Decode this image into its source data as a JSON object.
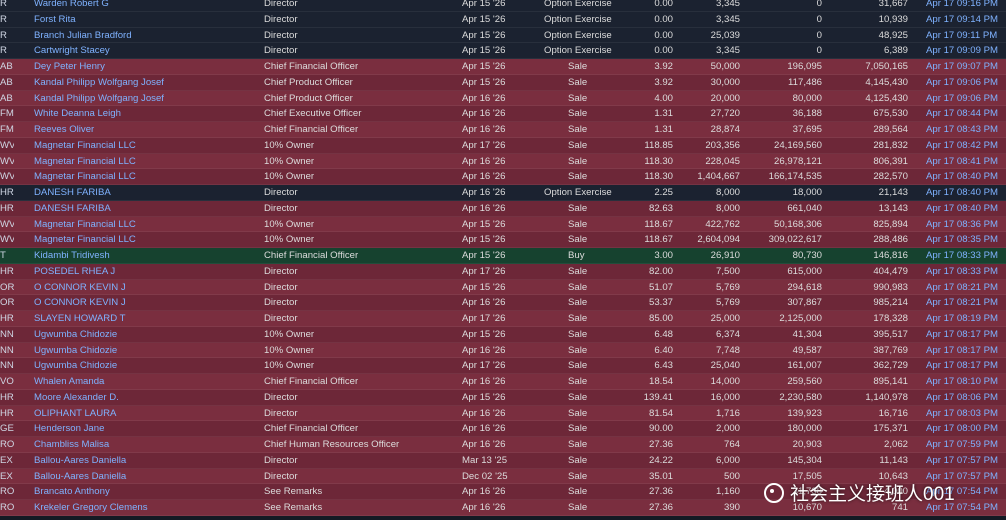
{
  "rows": [
    {
      "ticker": "R",
      "insider": "Warden Robert G",
      "title": "Director",
      "trade_date": "Apr 15 '26",
      "type": "Option Exercise",
      "price": "0.00",
      "qty": "3,345",
      "value": "0",
      "owned": "31,667",
      "filed": "Apr 17 09:16 PM"
    },
    {
      "ticker": "R",
      "insider": "Forst Rita",
      "title": "Director",
      "trade_date": "Apr 15 '26",
      "type": "Option Exercise",
      "price": "0.00",
      "qty": "3,345",
      "value": "0",
      "owned": "10,939",
      "filed": "Apr 17 09:14 PM"
    },
    {
      "ticker": "R",
      "insider": "Branch Julian Bradford",
      "title": "Director",
      "trade_date": "Apr 15 '26",
      "type": "Option Exercise",
      "price": "0.00",
      "qty": "25,039",
      "value": "0",
      "owned": "48,925",
      "filed": "Apr 17 09:11 PM"
    },
    {
      "ticker": "R",
      "insider": "Cartwright Stacey",
      "title": "Director",
      "trade_date": "Apr 15 '26",
      "type": "Option Exercise",
      "price": "0.00",
      "qty": "3,345",
      "value": "0",
      "owned": "6,389",
      "filed": "Apr 17 09:09 PM"
    },
    {
      "ticker": "AB",
      "insider": "Dey Peter Henry",
      "title": "Chief Financial Officer",
      "trade_date": "Apr 15 '26",
      "type": "Sale",
      "price": "3.92",
      "qty": "50,000",
      "value": "196,095",
      "owned": "7,050,165",
      "filed": "Apr 17 09:07 PM"
    },
    {
      "ticker": "AB",
      "insider": "Kandal Philipp Wolfgang Josef",
      "title": "Chief Product Officer",
      "trade_date": "Apr 15 '26",
      "type": "Sale",
      "price": "3.92",
      "qty": "30,000",
      "value": "117,486",
      "owned": "4,145,430",
      "filed": "Apr 17 09:06 PM"
    },
    {
      "ticker": "AB",
      "insider": "Kandal Philipp Wolfgang Josef",
      "title": "Chief Product Officer",
      "trade_date": "Apr 16 '26",
      "type": "Sale",
      "price": "4.00",
      "qty": "20,000",
      "value": "80,000",
      "owned": "4,125,430",
      "filed": "Apr 17 09:06 PM"
    },
    {
      "ticker": "FM",
      "insider": "White Deanna Leigh",
      "title": "Chief Executive Officer",
      "trade_date": "Apr 16 '26",
      "type": "Sale",
      "price": "1.31",
      "qty": "27,720",
      "value": "36,188",
      "owned": "675,530",
      "filed": "Apr 17 08:44 PM"
    },
    {
      "ticker": "FM",
      "insider": "Reeves Oliver",
      "title": "Chief Financial Officer",
      "trade_date": "Apr 16 '26",
      "type": "Sale",
      "price": "1.31",
      "qty": "28,874",
      "value": "37,695",
      "owned": "289,564",
      "filed": "Apr 17 08:43 PM"
    },
    {
      "ticker": "WV",
      "insider": "Magnetar Financial LLC",
      "title": "10% Owner",
      "trade_date": "Apr 17 '26",
      "type": "Sale",
      "price": "118.85",
      "qty": "203,356",
      "value": "24,169,560",
      "owned": "281,832",
      "filed": "Apr 17 08:42 PM"
    },
    {
      "ticker": "WV",
      "insider": "Magnetar Financial LLC",
      "title": "10% Owner",
      "trade_date": "Apr 16 '26",
      "type": "Sale",
      "price": "118.30",
      "qty": "228,045",
      "value": "26,978,121",
      "owned": "806,391",
      "filed": "Apr 17 08:41 PM"
    },
    {
      "ticker": "WV",
      "insider": "Magnetar Financial LLC",
      "title": "10% Owner",
      "trade_date": "Apr 16 '26",
      "type": "Sale",
      "price": "118.30",
      "qty": "1,404,667",
      "value": "166,174,535",
      "owned": "282,570",
      "filed": "Apr 17 08:40 PM"
    },
    {
      "ticker": "HR",
      "insider": "DANESH FARIBA",
      "title": "Director",
      "trade_date": "Apr 16 '26",
      "type": "Option Exercise",
      "price": "2.25",
      "qty": "8,000",
      "value": "18,000",
      "owned": "21,143",
      "filed": "Apr 17 08:40 PM"
    },
    {
      "ticker": "HR",
      "insider": "DANESH FARIBA",
      "title": "Director",
      "trade_date": "Apr 16 '26",
      "type": "Sale",
      "price": "82.63",
      "qty": "8,000",
      "value": "661,040",
      "owned": "13,143",
      "filed": "Apr 17 08:40 PM"
    },
    {
      "ticker": "WV",
      "insider": "Magnetar Financial LLC",
      "title": "10% Owner",
      "trade_date": "Apr 15 '26",
      "type": "Sale",
      "price": "118.67",
      "qty": "422,762",
      "value": "50,168,306",
      "owned": "825,894",
      "filed": "Apr 17 08:36 PM"
    },
    {
      "ticker": "WV",
      "insider": "Magnetar Financial LLC",
      "title": "10% Owner",
      "trade_date": "Apr 15 '26",
      "type": "Sale",
      "price": "118.67",
      "qty": "2,604,094",
      "value": "309,022,617",
      "owned": "288,486",
      "filed": "Apr 17 08:35 PM"
    },
    {
      "ticker": "T",
      "insider": "Kidambi Tridivesh",
      "title": "Chief Financial Officer",
      "trade_date": "Apr 15 '26",
      "type": "Buy",
      "price": "3.00",
      "qty": "26,910",
      "value": "80,730",
      "owned": "146,816",
      "filed": "Apr 17 08:33 PM"
    },
    {
      "ticker": "HR",
      "insider": "POSEDEL RHEA J",
      "title": "Director",
      "trade_date": "Apr 17 '26",
      "type": "Sale",
      "price": "82.00",
      "qty": "7,500",
      "value": "615,000",
      "owned": "404,479",
      "filed": "Apr 17 08:33 PM"
    },
    {
      "ticker": "OR",
      "insider": "O CONNOR KEVIN J",
      "title": "Director",
      "trade_date": "Apr 15 '26",
      "type": "Sale",
      "price": "51.07",
      "qty": "5,769",
      "value": "294,618",
      "owned": "990,983",
      "filed": "Apr 17 08:21 PM"
    },
    {
      "ticker": "OR",
      "insider": "O CONNOR KEVIN J",
      "title": "Director",
      "trade_date": "Apr 16 '26",
      "type": "Sale",
      "price": "53.37",
      "qty": "5,769",
      "value": "307,867",
      "owned": "985,214",
      "filed": "Apr 17 08:21 PM"
    },
    {
      "ticker": "HR",
      "insider": "SLAYEN HOWARD T",
      "title": "Director",
      "trade_date": "Apr 17 '26",
      "type": "Sale",
      "price": "85.00",
      "qty": "25,000",
      "value": "2,125,000",
      "owned": "178,328",
      "filed": "Apr 17 08:19 PM"
    },
    {
      "ticker": "NN",
      "insider": "Ugwumba Chidozie",
      "title": "10% Owner",
      "trade_date": "Apr 15 '26",
      "type": "Sale",
      "price": "6.48",
      "qty": "6,374",
      "value": "41,304",
      "owned": "395,517",
      "filed": "Apr 17 08:17 PM"
    },
    {
      "ticker": "NN",
      "insider": "Ugwumba Chidozie",
      "title": "10% Owner",
      "trade_date": "Apr 16 '26",
      "type": "Sale",
      "price": "6.40",
      "qty": "7,748",
      "value": "49,587",
      "owned": "387,769",
      "filed": "Apr 17 08:17 PM"
    },
    {
      "ticker": "NN",
      "insider": "Ugwumba Chidozie",
      "title": "10% Owner",
      "trade_date": "Apr 17 '26",
      "type": "Sale",
      "price": "6.43",
      "qty": "25,040",
      "value": "161,007",
      "owned": "362,729",
      "filed": "Apr 17 08:17 PM"
    },
    {
      "ticker": "VO",
      "insider": "Whalen Amanda",
      "title": "Chief Financial Officer",
      "trade_date": "Apr 16 '26",
      "type": "Sale",
      "price": "18.54",
      "qty": "14,000",
      "value": "259,560",
      "owned": "895,141",
      "filed": "Apr 17 08:10 PM"
    },
    {
      "ticker": "HR",
      "insider": "Moore Alexander D.",
      "title": "Director",
      "trade_date": "Apr 15 '26",
      "type": "Sale",
      "price": "139.41",
      "qty": "16,000",
      "value": "2,230,580",
      "owned": "1,140,978",
      "filed": "Apr 17 08:06 PM"
    },
    {
      "ticker": "HR",
      "insider": "OLIPHANT LAURA",
      "title": "Director",
      "trade_date": "Apr 16 '26",
      "type": "Sale",
      "price": "81.54",
      "qty": "1,716",
      "value": "139,923",
      "owned": "16,716",
      "filed": "Apr 17 08:03 PM"
    },
    {
      "ticker": "GE",
      "insider": "Henderson Jane",
      "title": "Chief Financial Officer",
      "trade_date": "Apr 16 '26",
      "type": "Sale",
      "price": "90.00",
      "qty": "2,000",
      "value": "180,000",
      "owned": "175,371",
      "filed": "Apr 17 08:00 PM"
    },
    {
      "ticker": "RO",
      "insider": "Chambliss Malisa",
      "title": "Chief Human Resources Officer",
      "trade_date": "Apr 16 '26",
      "type": "Sale",
      "price": "27.36",
      "qty": "764",
      "value": "20,903",
      "owned": "2,062",
      "filed": "Apr 17 07:59 PM"
    },
    {
      "ticker": "EX",
      "insider": "Ballou-Aares Daniella",
      "title": "Director",
      "trade_date": "Mar 13 '25",
      "type": "Sale",
      "price": "24.22",
      "qty": "6,000",
      "value": "145,304",
      "owned": "11,143",
      "filed": "Apr 17 07:57 PM"
    },
    {
      "ticker": "EX",
      "insider": "Ballou-Aares Daniella",
      "title": "Director",
      "trade_date": "Dec 02 '25",
      "type": "Sale",
      "price": "35.01",
      "qty": "500",
      "value": "17,505",
      "owned": "10,643",
      "filed": "Apr 17 07:57 PM"
    },
    {
      "ticker": "RO",
      "insider": "Brancato Anthony",
      "title": "See Remarks",
      "trade_date": "Apr 16 '26",
      "type": "Sale",
      "price": "27.36",
      "qty": "1,160",
      "value": "31,738",
      "owned": "4,000",
      "filed": "Apr 17 07:54 PM"
    },
    {
      "ticker": "RO",
      "insider": "Krekeler Gregory Clemens",
      "title": "See Remarks",
      "trade_date": "Apr 16 '26",
      "type": "Sale",
      "price": "27.36",
      "qty": "390",
      "value": "10,670",
      "owned": "741",
      "filed": "Apr 17 07:54 PM"
    }
  ],
  "watermark": {
    "text": "社会主义接班人001",
    "icon": "channel-logo-icon"
  }
}
